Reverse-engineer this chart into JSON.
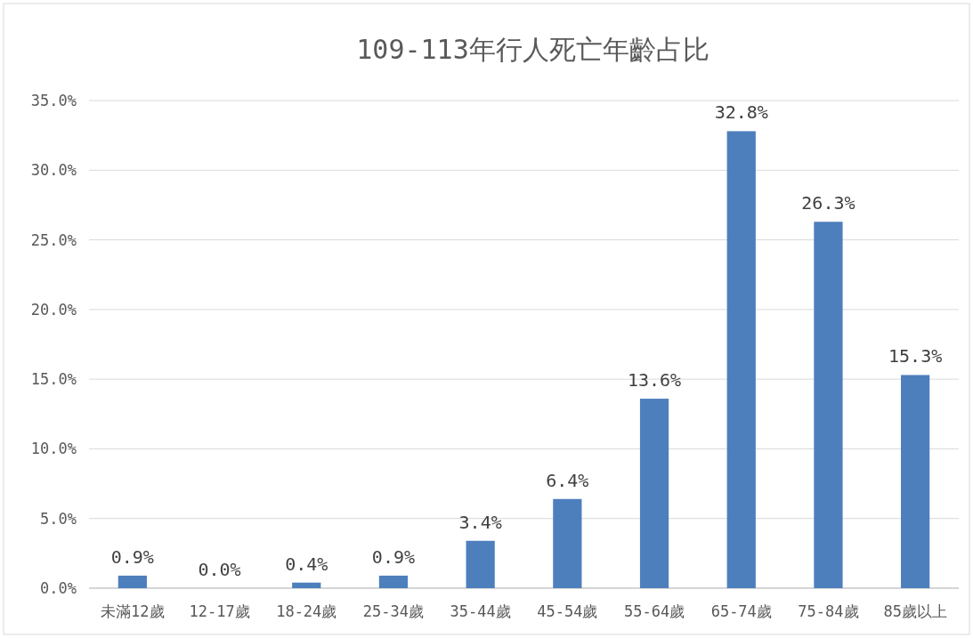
{
  "chart_data": {
    "type": "bar",
    "title": "109-113年行人死亡年齡占比",
    "categories": [
      "未滿12歲",
      "12-17歲",
      "18-24歲",
      "25-34歲",
      "35-44歲",
      "45-54歲",
      "55-64歲",
      "65-74歲",
      "75-84歲",
      "85歲以上"
    ],
    "values": [
      0.9,
      0.0,
      0.4,
      0.9,
      3.4,
      6.4,
      13.6,
      32.8,
      26.3,
      15.3
    ],
    "value_labels": [
      "0.9%",
      "0.0%",
      "0.4%",
      "0.9%",
      "3.4%",
      "6.4%",
      "13.6%",
      "32.8%",
      "26.3%",
      "15.3%"
    ],
    "color": "#4e7fbd",
    "ylim": [
      0,
      35
    ],
    "yticks": [
      {
        "value": 0,
        "label": "0.0%"
      },
      {
        "value": 5,
        "label": "5.0%"
      },
      {
        "value": 10,
        "label": "10.0%"
      },
      {
        "value": 15,
        "label": "15.0%"
      },
      {
        "value": 20,
        "label": "20.0%"
      },
      {
        "value": 25,
        "label": "25.0%"
      },
      {
        "value": 30,
        "label": "30.0%"
      },
      {
        "value": 35,
        "label": "35.0%"
      }
    ],
    "grid": "y"
  }
}
